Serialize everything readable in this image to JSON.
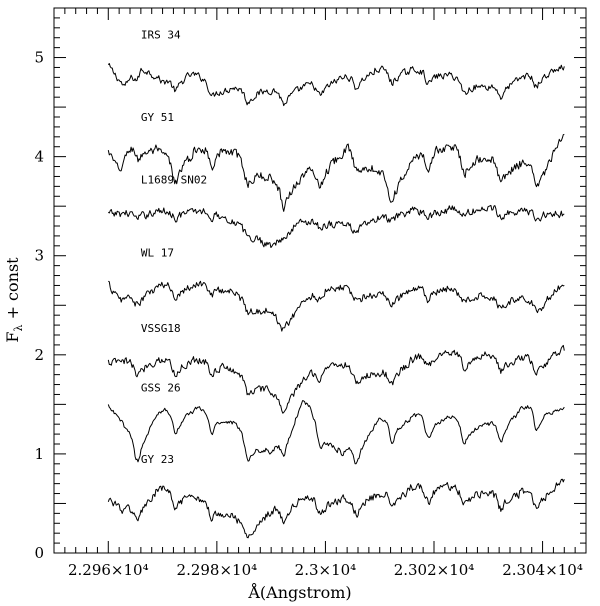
{
  "chart_data": {
    "type": "line",
    "xlabel": "Å(Angstrom)",
    "ylabel": "Fλ + const",
    "ylabel_main": "F",
    "ylabel_sub": "λ",
    "ylabel_rest": " + const",
    "xlim": [
      22950,
      23048
    ],
    "ylim": [
      0,
      5.5
    ],
    "x_ticks": [
      {
        "value": 22960,
        "label": "2.296×10⁴"
      },
      {
        "value": 22980,
        "label": "2.298×10⁴"
      },
      {
        "value": 23000,
        "label": "2.3×10⁴"
      },
      {
        "value": 23020,
        "label": "2.302×10⁴"
      },
      {
        "value": 23040,
        "label": "2.304×10⁴"
      }
    ],
    "y_ticks": [
      {
        "value": 0,
        "label": "0"
      },
      {
        "value": 1,
        "label": "1"
      },
      {
        "value": 2,
        "label": "2"
      },
      {
        "value": 3,
        "label": "3"
      },
      {
        "value": 4,
        "label": "4"
      },
      {
        "value": 5,
        "label": "5"
      }
    ],
    "x_range": [
      22960,
      23044
    ],
    "series": [
      {
        "name": "IRS 34",
        "offset": 4.88,
        "depth": 0.25,
        "noise": 0.06,
        "key_points": [
          [
            22960,
            4.92
          ],
          [
            22963,
            4.7
          ],
          [
            22966,
            4.97
          ],
          [
            22970,
            4.75
          ],
          [
            22975,
            4.85
          ],
          [
            22981,
            4.7
          ],
          [
            22992,
            4.66
          ],
          [
            23010,
            4.88
          ],
          [
            23020,
            4.87
          ],
          [
            23030,
            4.7
          ],
          [
            23038,
            4.83
          ],
          [
            23044,
            4.9
          ]
        ]
      },
      {
        "name": "GY 51",
        "offset": 4.05,
        "depth": 0.4,
        "noise": 0.08,
        "key_points": [
          [
            22960,
            4.05
          ],
          [
            22962,
            3.85
          ],
          [
            22965,
            4.2
          ],
          [
            22972,
            3.95
          ],
          [
            22980,
            4.15
          ],
          [
            22992,
            3.7
          ],
          [
            23005,
            4.1
          ],
          [
            23012,
            3.75
          ],
          [
            23020,
            4.15
          ],
          [
            23032,
            3.95
          ],
          [
            23040,
            3.9
          ],
          [
            23044,
            4.2
          ]
        ]
      },
      {
        "name": "L1689 SN02",
        "offset": 3.42,
        "depth": 0.12,
        "noise": 0.07,
        "key_points": [
          [
            22960,
            3.42
          ],
          [
            22970,
            3.45
          ],
          [
            22980,
            3.45
          ],
          [
            22990,
            3.1
          ],
          [
            22995,
            3.35
          ],
          [
            23000,
            3.35
          ],
          [
            23005,
            3.3
          ],
          [
            23015,
            3.45
          ],
          [
            23030,
            3.48
          ],
          [
            23044,
            3.42
          ]
        ]
      },
      {
        "name": "WL 17",
        "offset": 2.68,
        "depth": 0.22,
        "noise": 0.07,
        "key_points": [
          [
            22960,
            2.72
          ],
          [
            22962,
            2.55
          ],
          [
            22970,
            2.7
          ],
          [
            22980,
            2.72
          ],
          [
            22992,
            2.35
          ],
          [
            23000,
            2.72
          ],
          [
            23010,
            2.6
          ],
          [
            23020,
            2.68
          ],
          [
            23030,
            2.6
          ],
          [
            23040,
            2.55
          ],
          [
            23044,
            2.72
          ]
        ]
      },
      {
        "name": "VSSG18",
        "offset": 1.92,
        "depth": 0.28,
        "noise": 0.07,
        "key_points": [
          [
            22960,
            1.92
          ],
          [
            22970,
            1.95
          ],
          [
            22980,
            1.95
          ],
          [
            22992,
            1.55
          ],
          [
            23000,
            1.95
          ],
          [
            23010,
            1.8
          ],
          [
            23020,
            2.05
          ],
          [
            23030,
            2.0
          ],
          [
            23040,
            1.95
          ],
          [
            23044,
            2.05
          ]
        ]
      },
      {
        "name": "GSS 26",
        "offset": 1.32,
        "depth": 0.45,
        "noise": 0.04,
        "key_points": [
          [
            22960,
            1.48
          ],
          [
            22965,
            1.15
          ],
          [
            22970,
            1.45
          ],
          [
            22980,
            1.45
          ],
          [
            22990,
            1.0
          ],
          [
            22996,
            1.55
          ],
          [
            23003,
            1.0
          ],
          [
            23010,
            1.35
          ],
          [
            23020,
            1.4
          ],
          [
            23030,
            1.3
          ],
          [
            23038,
            1.5
          ],
          [
            23044,
            1.45
          ]
        ]
      },
      {
        "name": "GY 23",
        "offset": 0.6,
        "depth": 0.3,
        "noise": 0.07,
        "key_points": [
          [
            22960,
            0.55
          ],
          [
            22963,
            0.42
          ],
          [
            22970,
            0.65
          ],
          [
            22980,
            0.5
          ],
          [
            22985,
            0.28
          ],
          [
            22995,
            0.55
          ],
          [
            23005,
            0.55
          ],
          [
            23020,
            0.7
          ],
          [
            23030,
            0.6
          ],
          [
            23040,
            0.62
          ],
          [
            23044,
            0.72
          ]
        ]
      }
    ],
    "absorption_line_centers": [
      22965.5,
      22972.5,
      22979.2,
      22985.8,
      22992.5,
      22999.1,
      23005.8,
      23012.4,
      23019.1,
      23025.7,
      23032.4,
      23039.0
    ],
    "grid": false,
    "legend": "none"
  }
}
